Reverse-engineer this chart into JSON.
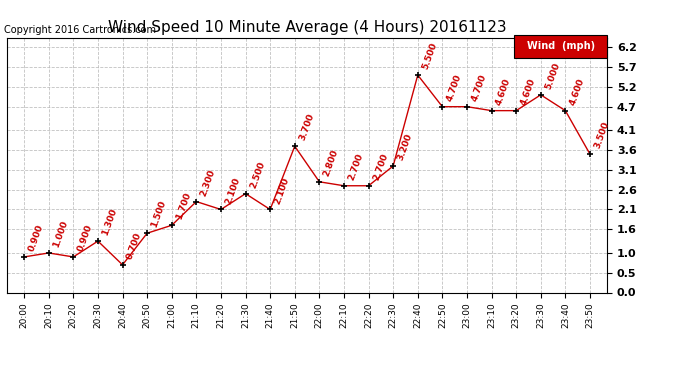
{
  "title": "Wind Speed 10 Minute Average (4 Hours) 20161123",
  "copyright": "Copyright 2016 Cartronics.com",
  "legend_label": "Wind  (mph)",
  "x_labels": [
    "20:00",
    "20:10",
    "20:20",
    "20:30",
    "20:40",
    "20:50",
    "21:00",
    "21:10",
    "21:20",
    "21:30",
    "21:40",
    "21:50",
    "22:00",
    "22:10",
    "22:20",
    "22:30",
    "22:40",
    "22:50",
    "23:00",
    "23:10",
    "23:20",
    "23:30",
    "23:40",
    "23:50"
  ],
  "y_values": [
    0.9,
    1.0,
    0.9,
    1.3,
    0.7,
    1.5,
    1.7,
    2.3,
    2.1,
    2.5,
    2.1,
    3.7,
    2.8,
    2.7,
    2.7,
    3.2,
    5.5,
    4.7,
    4.7,
    4.6,
    4.6,
    5.0,
    4.6,
    3.5
  ],
  "line_color": "#cc0000",
  "marker_color": "#000000",
  "bg_color": "#ffffff",
  "grid_color": "#bbbbbb",
  "ylim_min": 0.0,
  "ylim_max": 6.45,
  "yticks": [
    0.0,
    0.5,
    1.0,
    1.6,
    2.1,
    2.6,
    3.1,
    3.6,
    4.1,
    4.7,
    5.2,
    5.7,
    6.2
  ],
  "legend_bg": "#cc0000",
  "legend_text_color": "#ffffff",
  "annotation_color": "#cc0000",
  "annotation_fontsize": 6.5,
  "title_fontsize": 11,
  "copyright_fontsize": 7,
  "xtick_fontsize": 6.5,
  "ytick_fontsize": 8
}
